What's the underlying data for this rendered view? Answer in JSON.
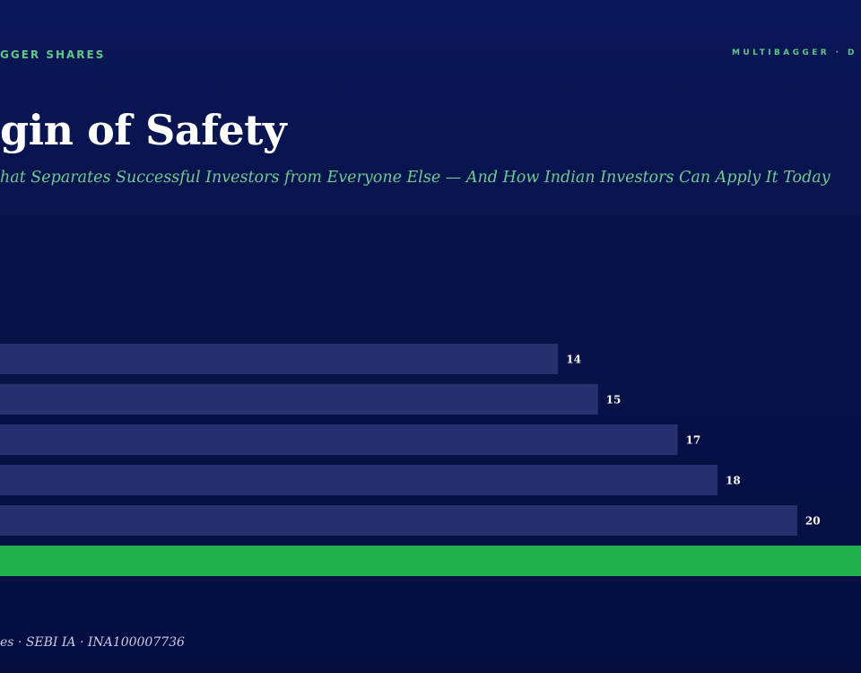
{
  "header": {
    "brand_left": "GGER SHARES",
    "brand_right": "MULTIBAGGER · D"
  },
  "title": "gin of Safety",
  "subtitle": "hat Separates Successful Investors from Everyone Else — And How Indian Investors Can Apply It Today",
  "footer": "es · SEBI IA · INA100007736",
  "colors": {
    "background": "#071248",
    "bar": "#273170",
    "bar_highlight": "#23b14d",
    "accent_text": "#5fc78a",
    "value_label": "#ffffff"
  },
  "chart_data": {
    "type": "bar",
    "orientation": "horizontal",
    "values": [
      14,
      15,
      17,
      18,
      20,
      22
    ],
    "value_labels": [
      "14",
      "15",
      "17",
      "18",
      "20",
      ""
    ],
    "highlight_index": 5,
    "xlim": [
      0,
      21.6
    ],
    "grid": false,
    "legend": "none"
  }
}
